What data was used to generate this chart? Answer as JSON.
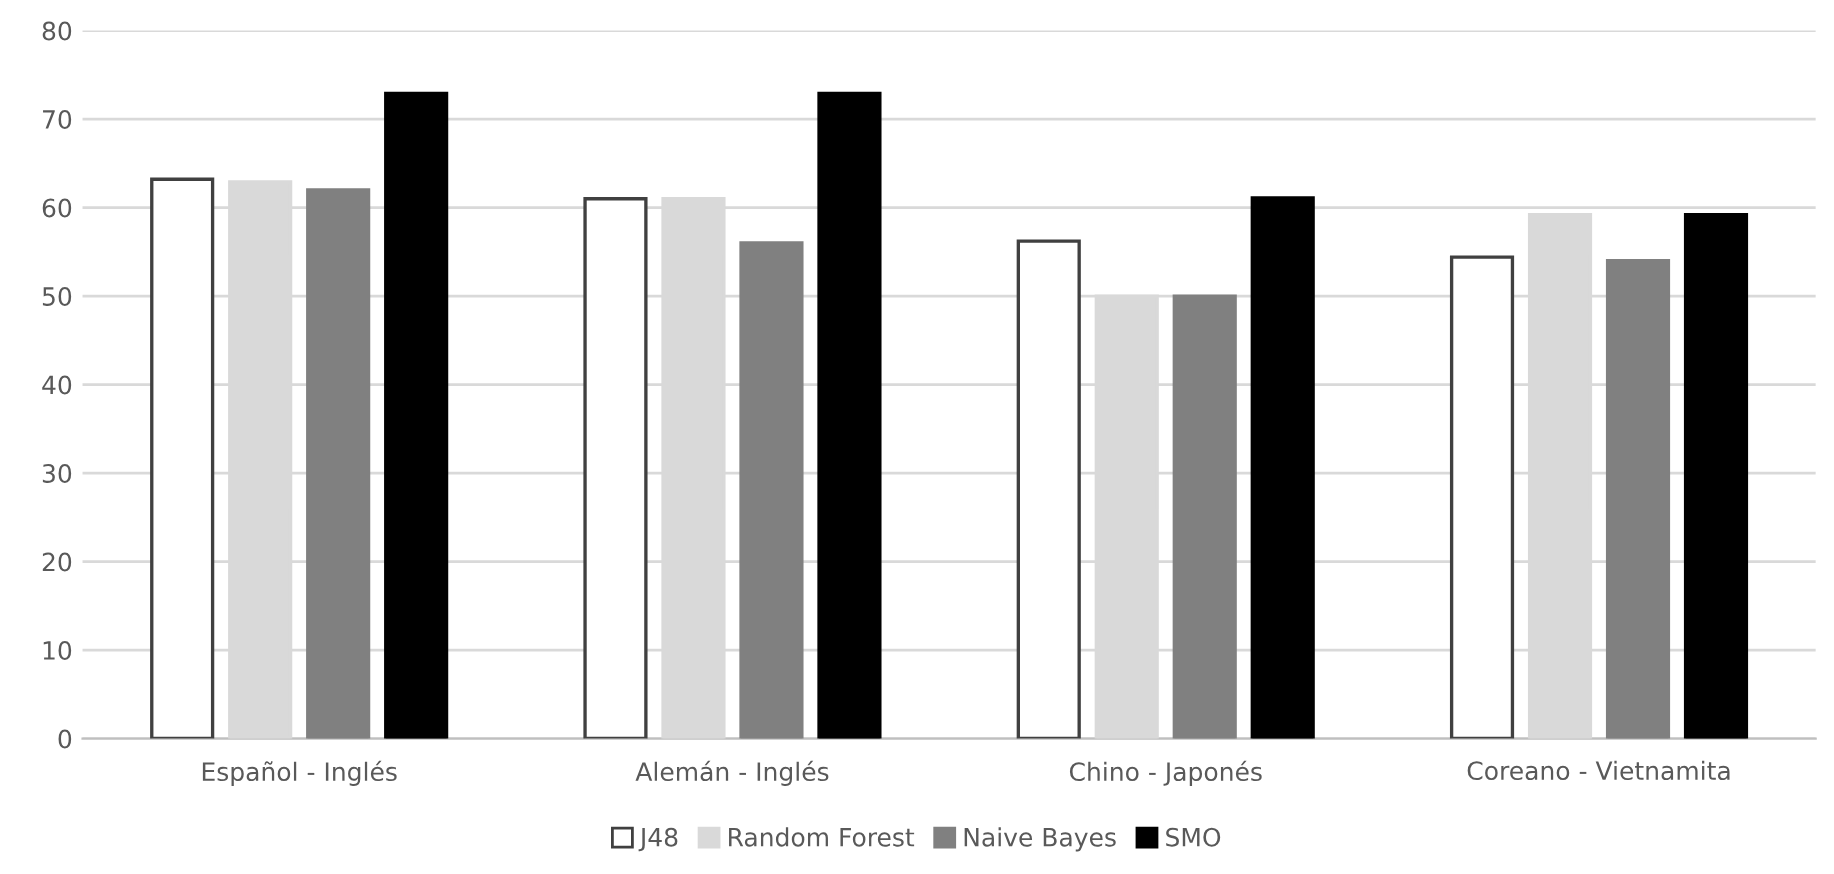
{
  "chart_data": {
    "type": "bar",
    "categories": [
      "Español - Inglés",
      "Alemán - Inglés",
      "Chino - Japonés",
      "Coreano - Vietnamita"
    ],
    "series": [
      {
        "name": "J48",
        "color": "#ffffff",
        "values": [
          63.2,
          61,
          56.2,
          54.4
        ]
      },
      {
        "name": "Random Forest",
        "color": "#d9d9d9",
        "values": [
          62.9,
          61,
          50,
          59.2
        ]
      },
      {
        "name": "Naive Bayes",
        "color": "#808080",
        "values": [
          62,
          56,
          50,
          54
        ]
      },
      {
        "name": "SMO",
        "color": "#000000",
        "values": [
          72.9,
          72.9,
          61.1,
          59.2
        ]
      }
    ],
    "ylim": [
      0,
      80
    ],
    "yticks": [
      0,
      10,
      20,
      30,
      40,
      50,
      60,
      70,
      80
    ],
    "grid": "y",
    "legend": "bottom"
  }
}
